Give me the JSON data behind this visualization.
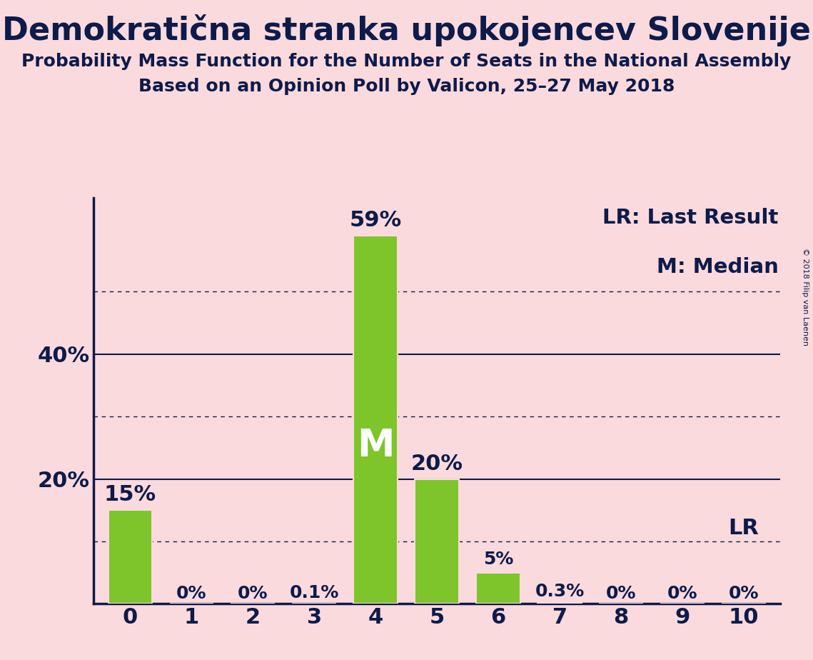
{
  "title": "Demokratična stranka upokojencev Slovenije",
  "subtitle1": "Probability Mass Function for the Number of Seats in the National Assembly",
  "subtitle2": "Based on an Opinion Poll by Valicon, 25–27 May 2018",
  "copyright": "© 2018 Filip van Laenen",
  "categories": [
    0,
    1,
    2,
    3,
    4,
    5,
    6,
    7,
    8,
    9,
    10
  ],
  "values": [
    15,
    0,
    0,
    0.1,
    59,
    20,
    5,
    0.3,
    0,
    0,
    0
  ],
  "bar_color": "#7DC52A",
  "background_color": "#FADADD",
  "text_color": "#0D1B4B",
  "title_fontsize": 32,
  "subtitle_fontsize": 18,
  "axis_label_fontsize": 22,
  "bar_label_fontsize_large": 22,
  "bar_label_fontsize_small": 18,
  "legend_fontsize": 21,
  "yticks_solid": [
    20,
    40
  ],
  "yticks_dotted": [
    10,
    30,
    50
  ],
  "ylim": [
    0,
    65
  ],
  "median_bar_index": 4,
  "lr_bar_index": 10,
  "lr_label": "LR",
  "median_label": "M",
  "legend_lines": [
    "LR: Last Result",
    "M: Median"
  ]
}
